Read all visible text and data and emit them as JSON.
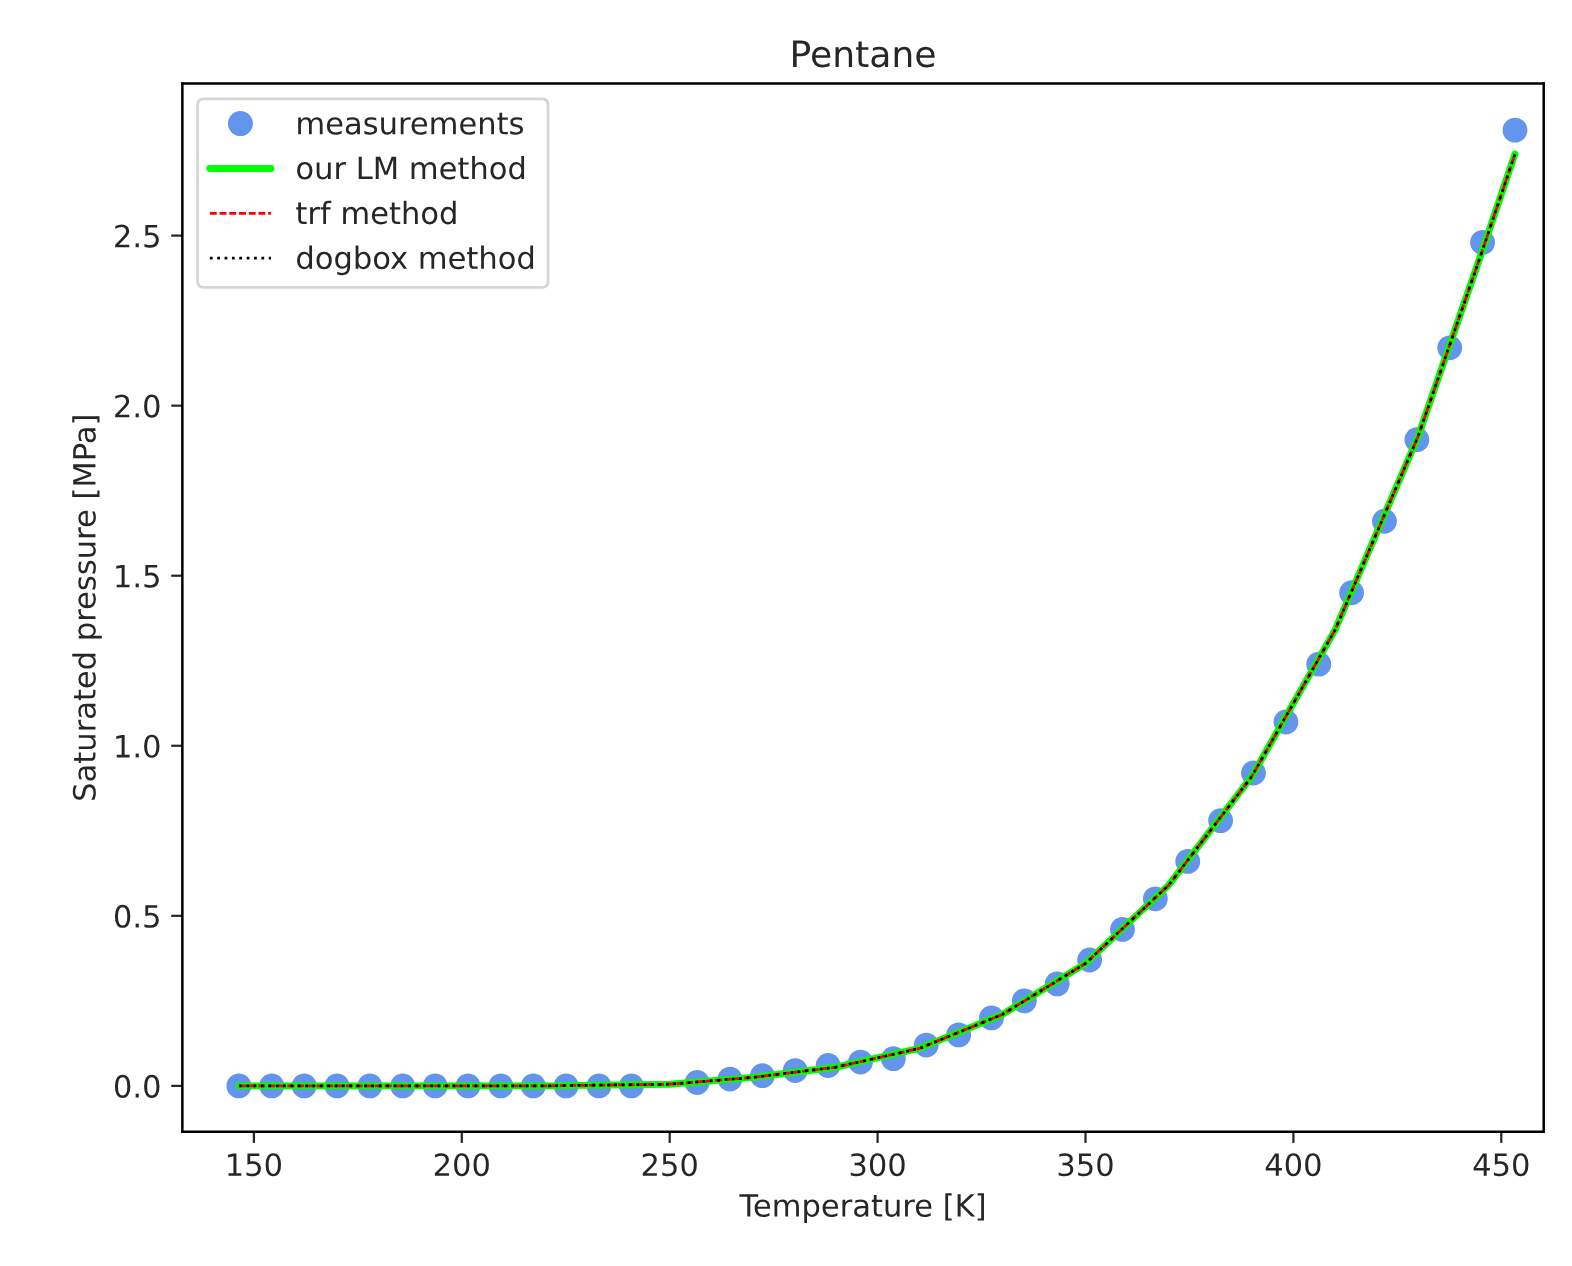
{
  "chart_data": {
    "type": "scatter",
    "title": "Pentane",
    "xlabel": "Temperature [K]",
    "ylabel": "Saturated pressure [MPa]",
    "xlim": [
      132.8,
      460.2
    ],
    "xticks": [
      150,
      200,
      250,
      300,
      350,
      400,
      450
    ],
    "ylim": [
      -0.135,
      2.947
    ],
    "yticks": [
      {
        "value": 0,
        "label": "0.0"
      },
      0.5,
      {
        "value": 1,
        "label": "1.0"
      },
      1.5,
      {
        "value": 2,
        "label": "2.0"
      },
      2.5
    ],
    "grid": false,
    "legend": "top left",
    "series": [
      {
        "name": "measurements",
        "marker": "circle",
        "color": "#6495ed",
        "x": [
          146.4,
          154.3,
          162.1,
          170.0,
          177.9,
          185.8,
          193.6,
          201.5,
          209.4,
          217.2,
          225.1,
          233.0,
          240.8,
          256.6,
          264.5,
          272.3,
          280.2,
          288.1,
          295.9,
          303.8,
          311.7,
          319.5,
          327.4,
          335.3,
          343.2,
          351.0,
          358.9,
          366.8,
          374.6,
          382.5,
          390.4,
          398.2,
          406.1,
          414.0,
          421.9,
          429.7,
          437.6,
          445.5,
          453.3
        ],
        "values": [
          0,
          0,
          0,
          0,
          0,
          0,
          0,
          0,
          0,
          0,
          0,
          0,
          0,
          0.01,
          0.02,
          0.03,
          0.045,
          0.06,
          0.07,
          0.08,
          0.12,
          0.15,
          0.2,
          0.25,
          0.3,
          0.37,
          0.46,
          0.55,
          0.66,
          0.78,
          0.92,
          1.07,
          1.24,
          1.45,
          1.66,
          1.9,
          2.17,
          2.48,
          2.81
        ]
      },
      {
        "name": "our LM method",
        "type": "line",
        "line_style": "solid",
        "color": "#00ff00",
        "x": [
          146.4,
          220,
          250,
          270,
          290,
          310,
          330,
          350,
          370,
          390,
          410,
          430,
          445,
          453.3
        ],
        "values": [
          0,
          0,
          0.005,
          0.025,
          0.055,
          0.11,
          0.21,
          0.36,
          0.59,
          0.91,
          1.34,
          1.91,
          2.44,
          2.74
        ]
      },
      {
        "name": "trf method",
        "type": "line",
        "line_style": "dashed",
        "color": "#ff0000",
        "x": [
          146.4,
          220,
          250,
          270,
          290,
          310,
          330,
          350,
          370,
          390,
          410,
          430,
          445,
          453.3
        ],
        "values": [
          0,
          0,
          0.005,
          0.025,
          0.055,
          0.11,
          0.21,
          0.36,
          0.59,
          0.91,
          1.34,
          1.91,
          2.44,
          2.74
        ]
      },
      {
        "name": "dogbox method",
        "type": "line",
        "line_style": "dotted",
        "color": "#000000",
        "x": [
          146.4,
          220,
          250,
          270,
          290,
          310,
          330,
          350,
          370,
          390,
          410,
          430,
          445,
          453.3
        ],
        "values": [
          0,
          0,
          0.005,
          0.025,
          0.055,
          0.11,
          0.21,
          0.36,
          0.59,
          0.91,
          1.34,
          1.91,
          2.44,
          2.74
        ]
      }
    ]
  }
}
